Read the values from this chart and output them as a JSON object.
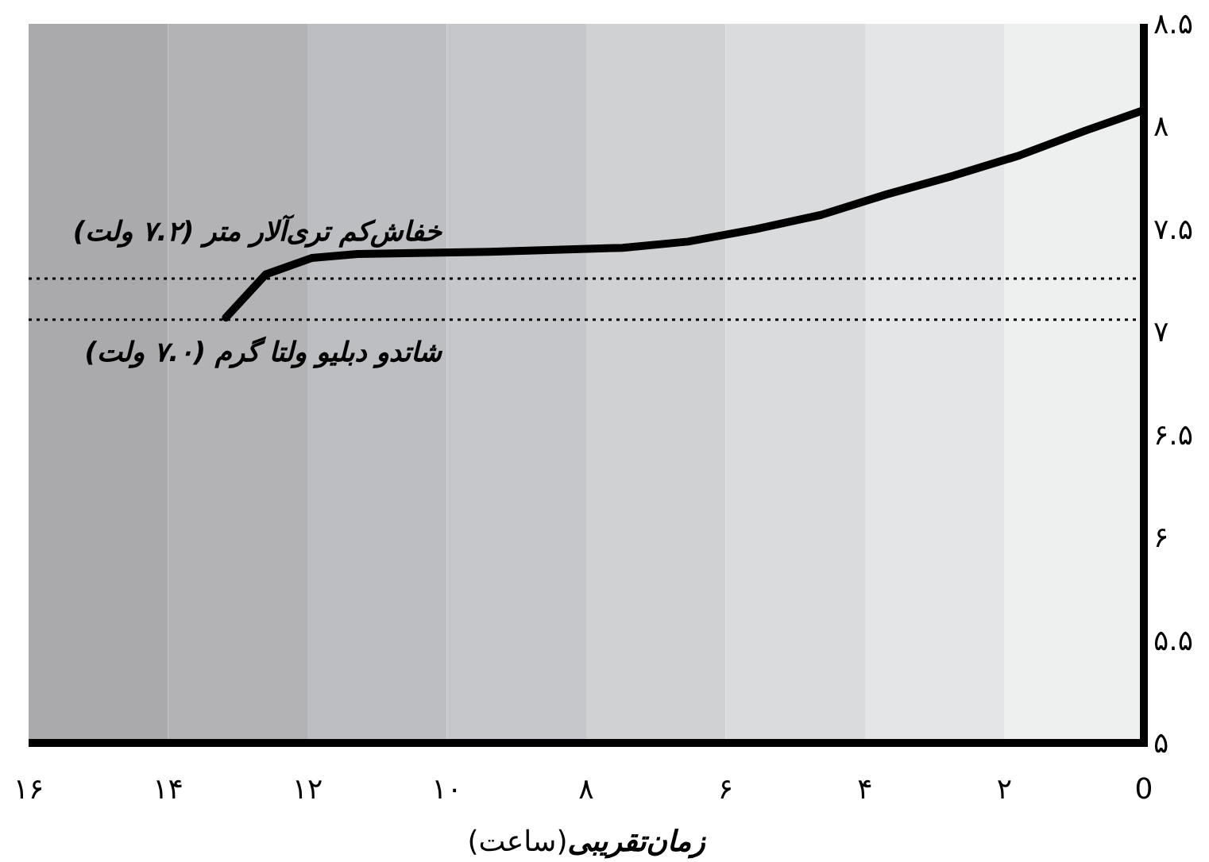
{
  "chart_data": {
    "type": "line",
    "xlabel": "**زمان‌تقریبی**(ساعت)",
    "x": [
      13.17,
      12.6,
      11.94,
      11.28,
      9.39,
      7.48,
      6.54,
      5.58,
      4.63,
      3.69,
      2.74,
      1.78,
      0.84,
      0
    ],
    "series": [
      {
        "color": "#000000",
        "values": [
          7.07,
          7.28,
          7.36,
          7.38,
          7.39,
          7.41,
          7.44,
          7.5,
          7.57,
          7.67,
          7.76,
          7.86,
          7.98,
          8.08
        ]
      }
    ],
    "xlim": [
      16,
      0
    ],
    "ylim": [
      5,
      8.5
    ],
    "xticks": [
      {
        "value": 16,
        "label": "۱۶"
      },
      {
        "value": 14,
        "label": "۱۴"
      },
      {
        "value": 12,
        "label": "۱۲"
      },
      {
        "value": 10,
        "label": "۱۰"
      },
      {
        "value": 8,
        "label": "۸"
      },
      {
        "value": 6,
        "label": "۶"
      },
      {
        "value": 4,
        "label": "۴"
      },
      {
        "value": 2,
        "label": "۲"
      },
      {
        "value": 0,
        "label": "0"
      }
    ],
    "yticks": [
      {
        "value": 5,
        "label": "۵"
      },
      {
        "value": 5.5,
        "label": "۵.۵"
      },
      {
        "value": 6,
        "label": "۶"
      },
      {
        "value": 6.5,
        "label": "۶.۵"
      },
      {
        "value": 7,
        "label": "۷"
      },
      {
        "value": 7.5,
        "label": "۷.۵"
      },
      {
        "value": 8,
        "label": "۸"
      },
      {
        "value": 8.5,
        "label": "۸.۵"
      }
    ],
    "ref_lines": [
      {
        "axis": "y",
        "value": 7.26,
        "label": "خفاش‌کم تری‌آلار متر (۷.۲ ولت)",
        "line_style": "dotted",
        "color": "#000000"
      },
      {
        "axis": "y",
        "value": 7.06,
        "label": "شاتدو دبلیو ولتا گرم (۷.۰ ولت)",
        "line_style": "dotted",
        "color": "#000000"
      }
    ],
    "bands": [
      {
        "axis": "x",
        "from": 16,
        "to": 14,
        "color": "#aaaaac"
      },
      {
        "axis": "x",
        "from": 14,
        "to": 12,
        "color": "#b3b3b6"
      },
      {
        "axis": "x",
        "from": 12,
        "to": 10,
        "color": "#bdbec1"
      },
      {
        "axis": "x",
        "from": 10,
        "to": 8,
        "color": "#c6c7ca"
      },
      {
        "axis": "x",
        "from": 8,
        "to": 6,
        "color": "#d0d1d3"
      },
      {
        "axis": "x",
        "from": 6,
        "to": 4,
        "color": "#dadbdd"
      },
      {
        "axis": "x",
        "from": 4,
        "to": 2,
        "color": "#e4e5e7"
      },
      {
        "axis": "x",
        "from": 2,
        "to": 0,
        "color": "#eeefef"
      }
    ],
    "grid": false,
    "marker": "none",
    "line_style": "solid"
  }
}
